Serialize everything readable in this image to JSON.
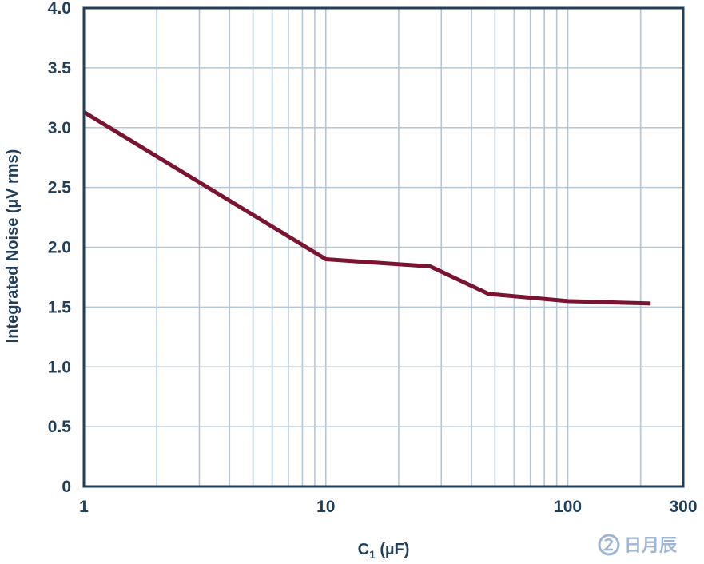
{
  "chart_data": {
    "type": "line",
    "title": "",
    "xlabel": {
      "main": "C",
      "sub": "1",
      "unit": " (µF)"
    },
    "ylabel": "Integrated Noise (µV rms)",
    "x_scale": "log",
    "xlim": [
      1,
      300
    ],
    "ylim": [
      0,
      4.0
    ],
    "x_ticks": [
      {
        "value": 1,
        "label": "1"
      },
      {
        "value": 10,
        "label": "10"
      },
      {
        "value": 100,
        "label": "100"
      },
      {
        "value": 300,
        "label": "300"
      }
    ],
    "y_ticks": [
      {
        "value": 0,
        "label": "0"
      },
      {
        "value": 0.5,
        "label": "0.5"
      },
      {
        "value": 1.0,
        "label": "1.0"
      },
      {
        "value": 1.5,
        "label": "1.5"
      },
      {
        "value": 2.0,
        "label": "2.0"
      },
      {
        "value": 2.5,
        "label": "2.5"
      },
      {
        "value": 3.0,
        "label": "3.0"
      },
      {
        "value": 3.5,
        "label": "3.5"
      },
      {
        "value": 4.0,
        "label": "4.0"
      }
    ],
    "grid": true,
    "series": [
      {
        "color": "#7a1430",
        "x": [
          1,
          10,
          27,
          47,
          100,
          220
        ],
        "y": [
          3.13,
          1.9,
          1.84,
          1.61,
          1.55,
          1.53
        ]
      }
    ]
  },
  "watermark": {
    "text": "日月辰"
  },
  "colors": {
    "axis": "#1f3f5b",
    "grid": "#b5c7d6",
    "line": "#7a1430"
  }
}
